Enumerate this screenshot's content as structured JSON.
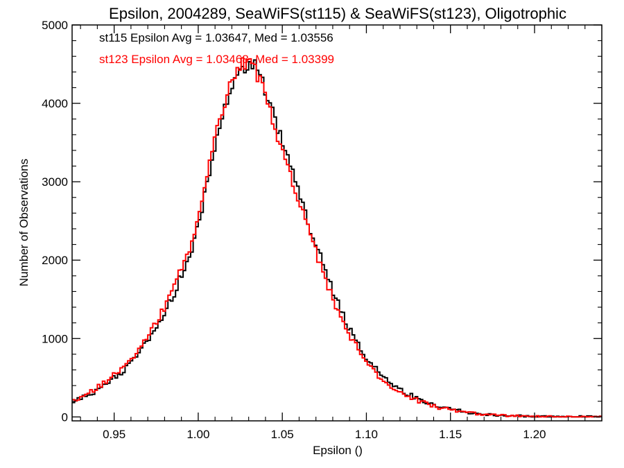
{
  "chart_data": {
    "type": "line",
    "title": "Epsilon, 2004289, SeaWiFS(st115) & SeaWiFS(st123), Oligotrophic",
    "xlabel": "Epsilon ()",
    "ylabel": "Number of Observations",
    "xlim": [
      0.925,
      1.24
    ],
    "ylim": [
      -50,
      5000
    ],
    "x_ticks": [
      0.95,
      1.0,
      1.05,
      1.1,
      1.15,
      1.2
    ],
    "x_tick_labels": [
      "0.95",
      "1.00",
      "1.05",
      "1.10",
      "1.15",
      "1.20"
    ],
    "y_ticks": [
      0,
      1000,
      2000,
      3000,
      4000,
      5000
    ],
    "y_tick_labels": [
      "0",
      "1000",
      "2000",
      "3000",
      "4000",
      "5000"
    ],
    "grid": false,
    "style": "step-histogram",
    "annotations": [
      {
        "text": "st115 Epsilon Avg = 1.03647, Med = 1.03556",
        "color": "#000000"
      },
      {
        "text": "st123 Epsilon Avg = 1.03468, Med = 1.03399",
        "color": "#ff0000"
      }
    ],
    "series": [
      {
        "name": "st115",
        "color": "#000000",
        "x": [
          0.925,
          0.935,
          0.945,
          0.955,
          0.965,
          0.975,
          0.985,
          0.995,
          1.0,
          1.005,
          1.01,
          1.015,
          1.02,
          1.025,
          1.03,
          1.035,
          1.04,
          1.045,
          1.05,
          1.055,
          1.06,
          1.065,
          1.07,
          1.075,
          1.08,
          1.085,
          1.09,
          1.095,
          1.1,
          1.11,
          1.12,
          1.13,
          1.14,
          1.15,
          1.16,
          1.17,
          1.18,
          1.19,
          1.2,
          1.21,
          1.22,
          1.24
        ],
        "values": [
          190,
          280,
          420,
          580,
          830,
          1120,
          1550,
          2050,
          2450,
          2950,
          3450,
          3900,
          4200,
          4420,
          4520,
          4450,
          4170,
          3820,
          3500,
          3200,
          2850,
          2500,
          2200,
          1900,
          1600,
          1350,
          1120,
          920,
          760,
          500,
          340,
          240,
          150,
          100,
          60,
          35,
          20,
          12,
          8,
          5,
          3,
          2
        ]
      },
      {
        "name": "st123",
        "color": "#ff0000",
        "x": [
          0.925,
          0.935,
          0.945,
          0.955,
          0.965,
          0.975,
          0.985,
          0.995,
          1.0,
          1.005,
          1.01,
          1.015,
          1.02,
          1.025,
          1.03,
          1.035,
          1.04,
          1.045,
          1.05,
          1.055,
          1.06,
          1.065,
          1.07,
          1.075,
          1.08,
          1.085,
          1.09,
          1.095,
          1.1,
          1.11,
          1.12,
          1.13,
          1.14,
          1.15,
          1.16,
          1.17,
          1.18,
          1.19,
          1.2,
          1.21,
          1.22,
          1.24
        ],
        "values": [
          200,
          300,
          450,
          620,
          880,
          1190,
          1640,
          2150,
          2580,
          3080,
          3580,
          3980,
          4280,
          4480,
          4550,
          4380,
          4100,
          3740,
          3420,
          3100,
          2760,
          2420,
          2110,
          1810,
          1520,
          1270,
          1050,
          860,
          700,
          460,
          310,
          215,
          135,
          90,
          55,
          32,
          18,
          11,
          7,
          4,
          3,
          2
        ]
      }
    ]
  }
}
